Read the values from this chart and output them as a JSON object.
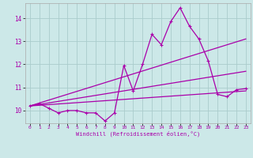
{
  "xlabel": "Windchill (Refroidissement éolien,°C)",
  "xlim": [
    -0.5,
    23.5
  ],
  "ylim": [
    9.45,
    14.65
  ],
  "yticks": [
    10,
    11,
    12,
    13,
    14
  ],
  "xticks": [
    0,
    1,
    2,
    3,
    4,
    5,
    6,
    7,
    8,
    9,
    10,
    11,
    12,
    13,
    14,
    15,
    16,
    17,
    18,
    19,
    20,
    21,
    22,
    23
  ],
  "bg_color": "#cce8e8",
  "line_color": "#aa00aa",
  "grid_color": "#aacccc",
  "jagged_x": [
    0,
    1,
    2,
    3,
    4,
    5,
    6,
    7,
    8,
    9,
    10,
    11,
    12,
    13,
    14,
    15,
    16,
    17,
    18,
    19,
    20,
    21,
    22,
    23
  ],
  "jagged_y": [
    10.2,
    10.3,
    10.1,
    9.9,
    10.0,
    10.0,
    9.9,
    9.9,
    9.55,
    9.9,
    11.95,
    10.85,
    12.0,
    13.3,
    12.85,
    13.85,
    14.45,
    13.65,
    13.1,
    12.15,
    10.7,
    10.6,
    10.9,
    10.95
  ],
  "line1_x": [
    0,
    23
  ],
  "line1_y": [
    10.2,
    10.85
  ],
  "line2_x": [
    0,
    23
  ],
  "line2_y": [
    10.2,
    11.7
  ],
  "line3_x": [
    0,
    23
  ],
  "line3_y": [
    10.2,
    13.1
  ]
}
